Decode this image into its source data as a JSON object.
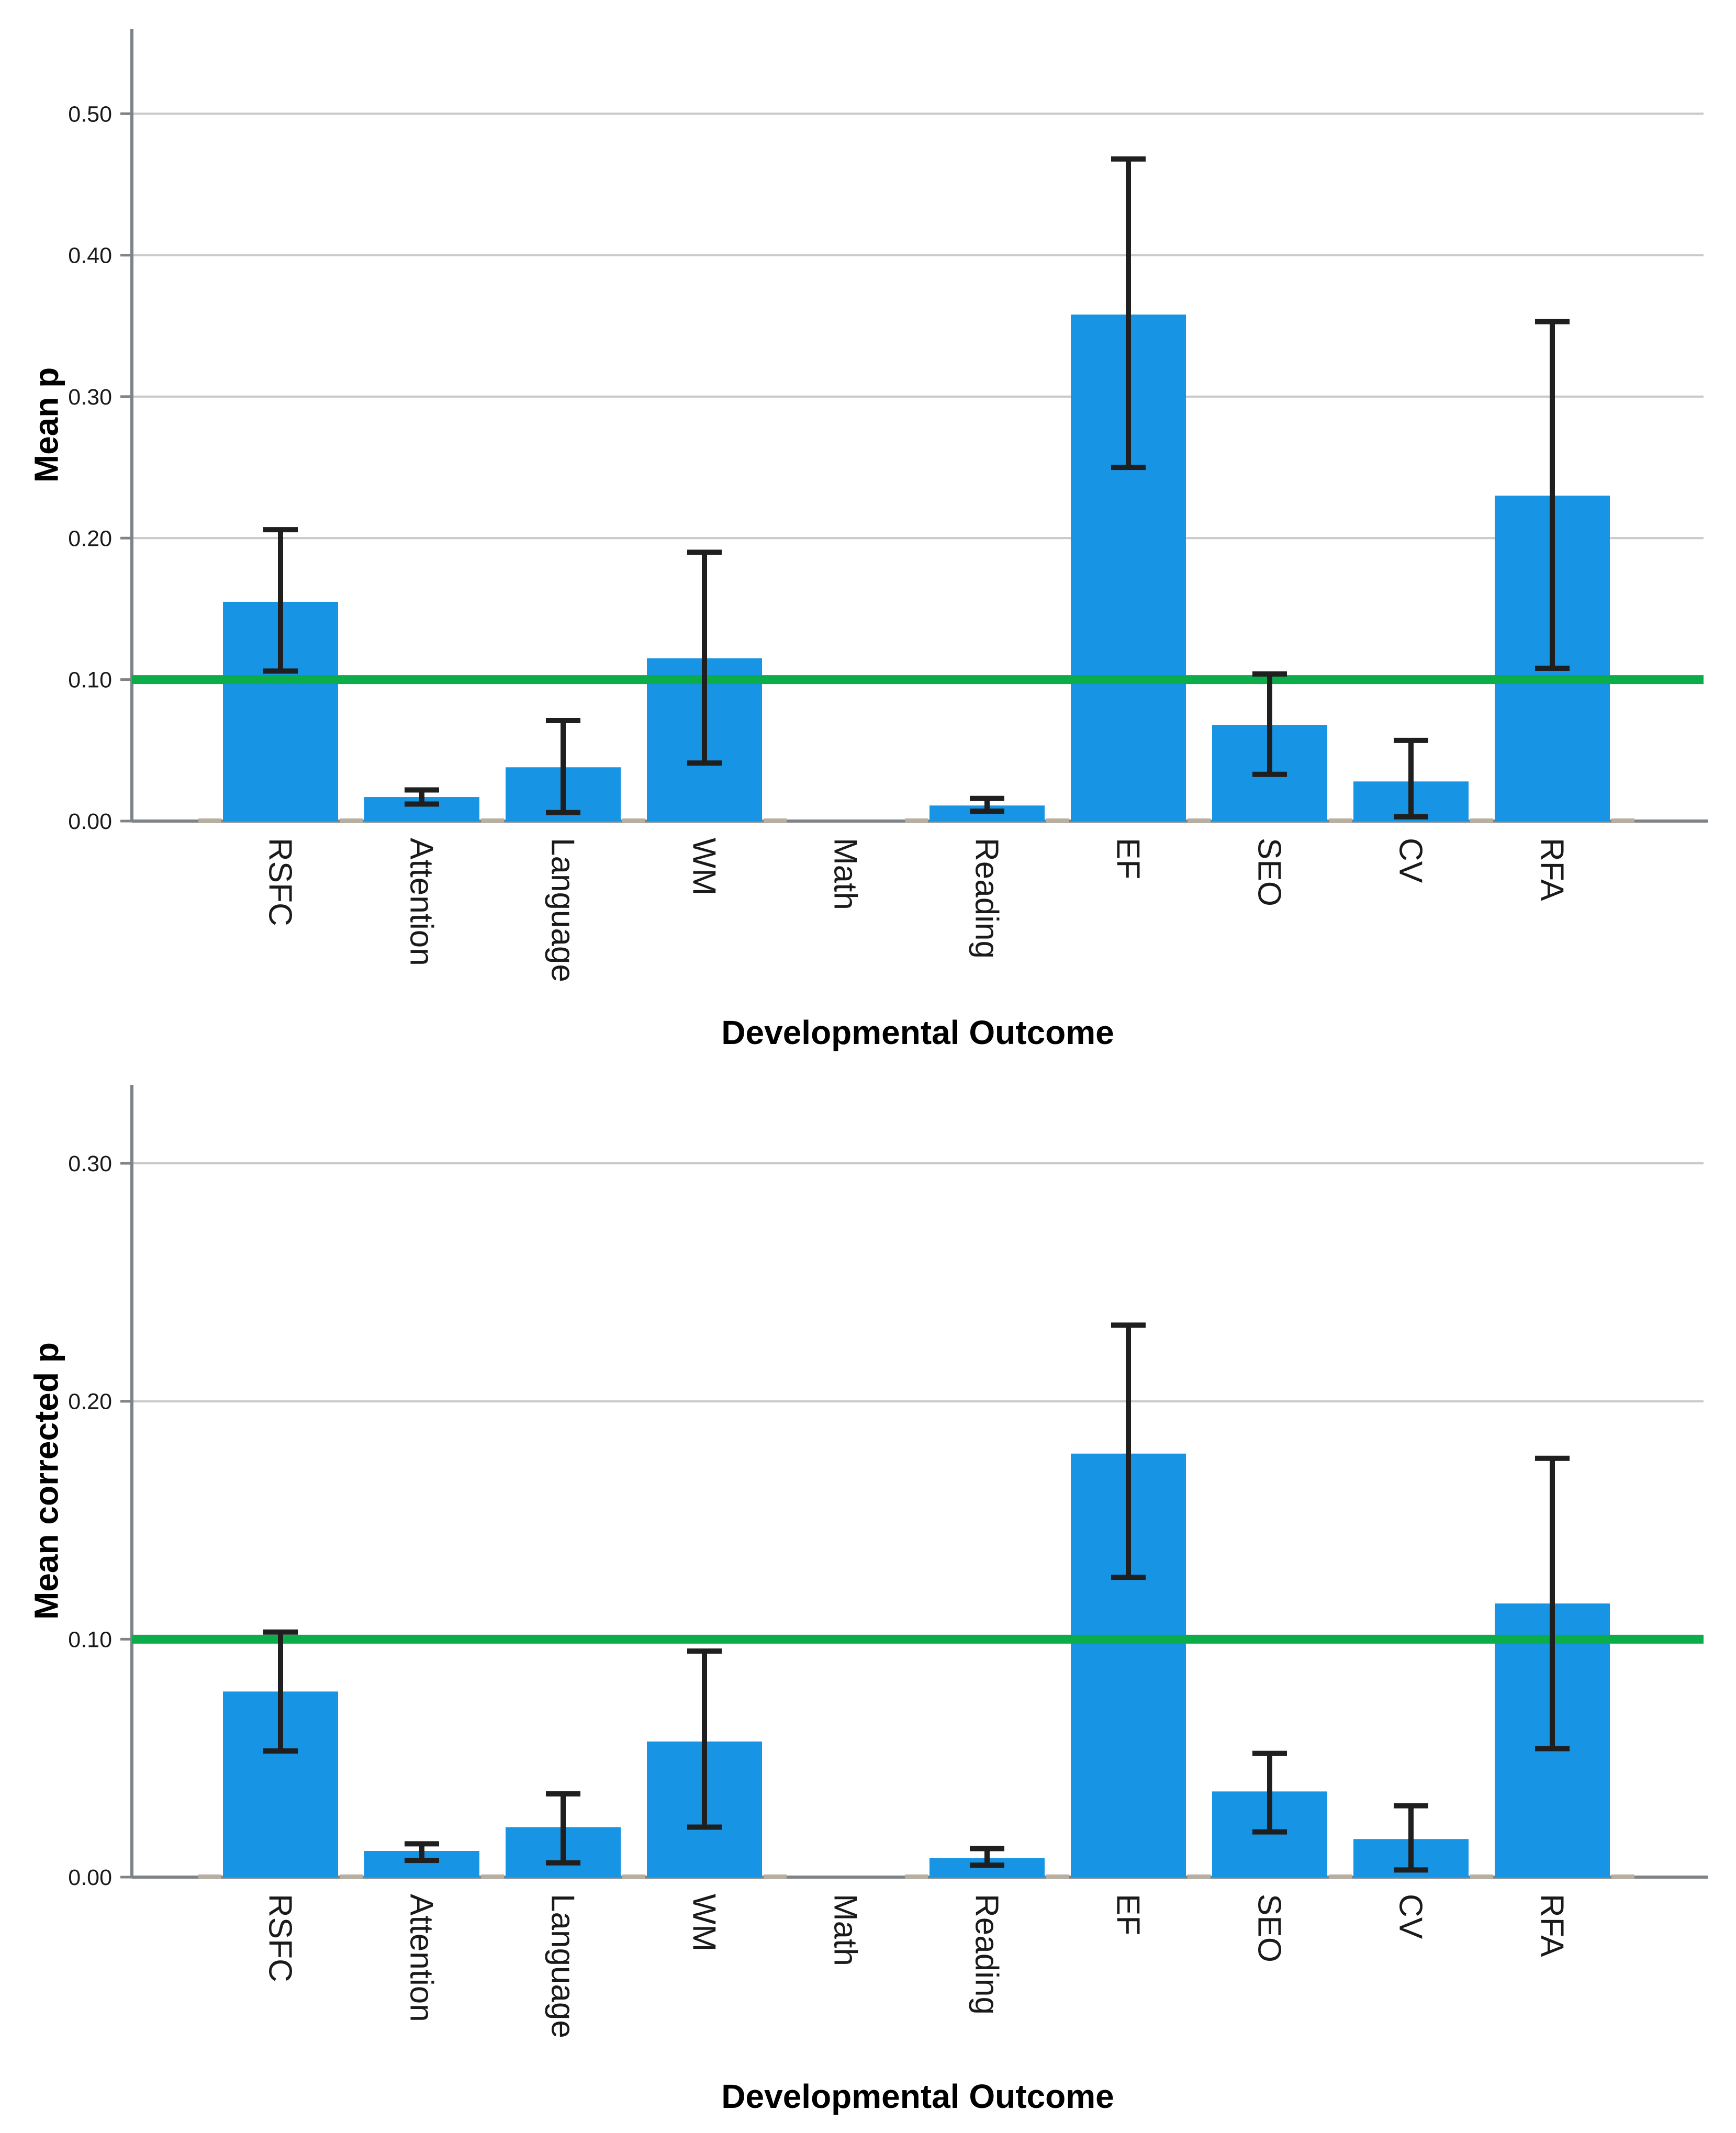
{
  "figure": {
    "background": "#ffffff",
    "xlabel": "Developmental Outcome",
    "categories": [
      "RSFC",
      "Attention",
      "Language",
      "WM",
      "Math",
      "Reading",
      "EF",
      "SEO",
      "CV",
      "RFA"
    ]
  },
  "chart_data": [
    {
      "type": "bar",
      "title": "",
      "ylabel": "Mean p",
      "xlabel": "Developmental Outcome",
      "categories": [
        "RSFC",
        "Attention",
        "Language",
        "WM",
        "Math",
        "Reading",
        "EF",
        "SEO",
        "CV",
        "RFA"
      ],
      "values": [
        0.155,
        0.017,
        0.038,
        0.115,
        0.0,
        0.011,
        0.358,
        0.068,
        0.028,
        0.23
      ],
      "error_low": [
        0.106,
        0.012,
        0.006,
        0.041,
        null,
        0.007,
        0.25,
        0.033,
        0.003,
        0.108
      ],
      "error_high": [
        0.206,
        0.022,
        0.071,
        0.19,
        null,
        0.016,
        0.468,
        0.104,
        0.057,
        0.353
      ],
      "reference_line_y": 0.1,
      "ylim": [
        0,
        0.56
      ],
      "yticks": [
        0.0,
        0.1,
        0.2,
        0.3,
        0.4,
        0.5
      ],
      "ytick_labels": [
        "0.00",
        "0.10",
        "0.20",
        "0.30",
        "0.40",
        "0.50"
      ],
      "grid": "horizontal",
      "legend": "none",
      "colors": {
        "bar": "#1894E4",
        "reference_line": "#0BAC4A",
        "error_bar": "#1F1F1F",
        "gridline": "#C9C9C9",
        "axis": "#7E8387",
        "boundary_tick": "#B7AFA2",
        "tick_text": "#1A1A1A",
        "title_text": "#000000"
      }
    },
    {
      "type": "bar",
      "title": "",
      "ylabel": "Mean corrected p",
      "xlabel": "Developmental Outcome",
      "categories": [
        "RSFC",
        "Attention",
        "Language",
        "WM",
        "Math",
        "Reading",
        "EF",
        "SEO",
        "CV",
        "RFA"
      ],
      "values": [
        0.078,
        0.011,
        0.021,
        0.057,
        0.0,
        0.008,
        0.178,
        0.036,
        0.016,
        0.115
      ],
      "error_low": [
        0.053,
        0.007,
        0.006,
        0.021,
        null,
        0.005,
        0.126,
        0.019,
        0.003,
        0.054
      ],
      "error_high": [
        0.103,
        0.014,
        0.035,
        0.095,
        null,
        0.012,
        0.232,
        0.052,
        0.03,
        0.176
      ],
      "reference_line_y": 0.1,
      "ylim": [
        0,
        0.333
      ],
      "yticks": [
        0.0,
        0.1,
        0.2,
        0.3
      ],
      "ytick_labels": [
        "0.00",
        "0.10",
        "0.20",
        "0.30"
      ],
      "grid": "horizontal",
      "legend": "none",
      "colors": {
        "bar": "#1894E4",
        "reference_line": "#0BAC4A",
        "error_bar": "#1F1F1F",
        "gridline": "#C9C9C9",
        "axis": "#7E8387",
        "boundary_tick": "#B7AFA2",
        "tick_text": "#1A1A1A",
        "title_text": "#000000"
      }
    }
  ]
}
